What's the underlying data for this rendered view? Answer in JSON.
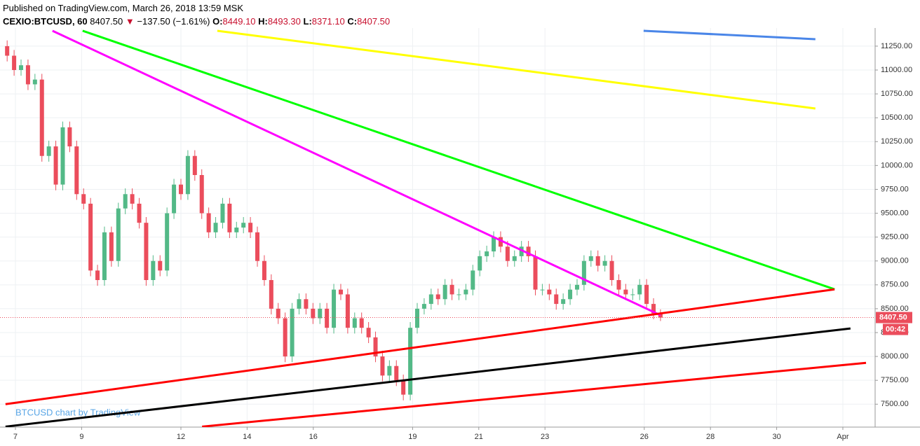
{
  "header": {
    "published": "Published on TradingView.com, March 26, 2018 13:59 MSK",
    "symbol": "CEXIO:BTCUSD, 60",
    "last": "8407.50",
    "arrow": "▼",
    "change": "−137.50 (−1.61%)",
    "ohlc": [
      {
        "label": "O:",
        "value": "8449.10"
      },
      {
        "label": "H:",
        "value": "8493.30"
      },
      {
        "label": "L:",
        "value": "8371.10"
      },
      {
        "label": "C:",
        "value": "8407.50"
      }
    ]
  },
  "chart_data": {
    "type": "candlestick",
    "watermark": "BTCUSD chart by TradingView",
    "up_color": "#53b987",
    "down_color": "#eb4d5c",
    "grid": true,
    "last_price_label": "8407.50",
    "countdown": "00:42",
    "xlim": [
      6.534,
      32.975
    ],
    "ylim": [
      7260,
      11440
    ],
    "xticks": [
      7,
      9,
      12,
      14,
      16,
      19,
      21,
      23,
      26,
      28,
      30,
      {
        "value": 32,
        "label": "Apr"
      }
    ],
    "yticks": [
      {
        "value": 7500,
        "label": "7500.00"
      },
      {
        "value": 7750,
        "label": "7750.00"
      },
      {
        "value": 8000,
        "label": "8000.00"
      },
      {
        "value": 8250,
        "label": "8250.00"
      },
      {
        "value": 8500,
        "label": "8500.00"
      },
      {
        "value": 8750,
        "label": "8750.00"
      },
      {
        "value": 9000,
        "label": "9000.00"
      },
      {
        "value": 9250,
        "label": "9250.00"
      },
      {
        "value": 9500,
        "label": "9500.00"
      },
      {
        "value": 9750,
        "label": "9750.00"
      },
      {
        "value": 10000,
        "label": "10000.00"
      },
      {
        "value": 10250,
        "label": "10250.00"
      },
      {
        "value": 10500,
        "label": "10500.00"
      },
      {
        "value": 10750,
        "label": "10750.00"
      },
      {
        "value": 11000,
        "label": "11000.00"
      },
      {
        "value": 11250,
        "label": "11250.00"
      }
    ],
    "x": [
      6.75,
      6.96,
      7.17,
      7.38,
      7.59,
      7.8,
      8.01,
      8.22,
      8.43,
      8.64,
      8.85,
      9.06,
      9.27,
      9.48,
      9.69,
      9.9,
      10.11,
      10.32,
      10.53,
      10.74,
      10.95,
      11.16,
      11.37,
      11.58,
      11.79,
      12,
      12.21,
      12.42,
      12.63,
      12.84,
      13.05,
      13.26,
      13.47,
      13.68,
      13.89,
      14.1,
      14.31,
      14.52,
      14.73,
      14.94,
      15.15,
      15.36,
      15.57,
      15.78,
      15.99,
      16.2,
      16.41,
      16.62,
      16.83,
      17.04,
      17.25,
      17.46,
      17.67,
      17.88,
      18.09,
      18.3,
      18.51,
      18.72,
      18.93,
      19.14,
      19.35,
      19.56,
      19.77,
      19.98,
      20.19,
      20.4,
      20.61,
      20.82,
      21.03,
      21.24,
      21.45,
      21.66,
      21.87,
      22.08,
      22.29,
      22.5,
      22.71,
      22.92,
      23.13,
      23.34,
      23.55,
      23.76,
      23.97,
      24.18,
      24.39,
      24.6,
      24.81,
      25.02,
      25.23,
      25.44,
      25.65,
      25.86,
      26.07,
      26.28,
      26.49
    ],
    "open": [
      11250,
      11150,
      11000,
      11050,
      10850,
      10900,
      10100,
      10200,
      9800,
      10400,
      10200,
      9700,
      9600,
      8900,
      8800,
      9300,
      9000,
      9550,
      9700,
      9600,
      9400,
      8800,
      9000,
      8900,
      9500,
      9800,
      9700,
      10100,
      9900,
      9500,
      9300,
      9400,
      9600,
      9300,
      9350,
      9400,
      9300,
      9000,
      8800,
      8500,
      8400,
      8000,
      8500,
      8600,
      8500,
      8400,
      8500,
      8300,
      8700,
      8650,
      8300,
      8400,
      8300,
      8200,
      8000,
      7800,
      7900,
      7750,
      7600,
      8300,
      8500,
      8550,
      8650,
      8600,
      8750,
      8650,
      8650,
      8700,
      8900,
      9050,
      9100,
      9250,
      9150,
      9000,
      9050,
      9150,
      9050,
      8700,
      8700,
      8650,
      8550,
      8600,
      8700,
      8750,
      9000,
      9050,
      8950,
      9000,
      8800,
      8700,
      8650,
      8650,
      8750,
      8550,
      8449.1
    ],
    "high": [
      11310,
      11210,
      11110,
      11110,
      10960,
      10960,
      10260,
      10260,
      10460,
      10460,
      10260,
      9760,
      9660,
      8960,
      9360,
      9360,
      9610,
      9760,
      9760,
      9660,
      9460,
      9060,
      9060,
      9560,
      9860,
      9860,
      10160,
      10160,
      9960,
      9560,
      9460,
      9660,
      9660,
      9410,
      9460,
      9460,
      9360,
      9060,
      8860,
      8560,
      8460,
      8560,
      8660,
      8660,
      8560,
      8560,
      8560,
      8760,
      8760,
      8710,
      8460,
      8460,
      8360,
      8260,
      8060,
      7960,
      7960,
      7810,
      8360,
      8560,
      8610,
      8710,
      8710,
      8810,
      8810,
      8710,
      8760,
      8960,
      9110,
      9160,
      9310,
      9310,
      9210,
      9110,
      9210,
      9210,
      9110,
      8760,
      8760,
      8710,
      8660,
      8760,
      8810,
      9060,
      9110,
      9110,
      9060,
      9060,
      8860,
      8760,
      8710,
      8810,
      8810,
      8610,
      8493.3
    ],
    "low": [
      11090,
      10940,
      10940,
      10790,
      10790,
      10040,
      10040,
      9740,
      9740,
      10140,
      9640,
      9540,
      8840,
      8740,
      8740,
      8940,
      8940,
      9490,
      9540,
      9340,
      8740,
      8740,
      8840,
      8840,
      9440,
      9640,
      9640,
      9840,
      9440,
      9240,
      9240,
      9340,
      9240,
      9240,
      9290,
      9240,
      8940,
      8740,
      8440,
      8340,
      7940,
      7940,
      8440,
      8440,
      8340,
      8340,
      8240,
      8240,
      8590,
      8240,
      8240,
      8240,
      8140,
      7940,
      7740,
      7740,
      7690,
      7540,
      7540,
      8240,
      8440,
      8490,
      8540,
      8540,
      8590,
      8590,
      8590,
      8640,
      8840,
      8990,
      9040,
      9090,
      8940,
      8940,
      8990,
      8990,
      8640,
      8640,
      8590,
      8490,
      8490,
      8540,
      8640,
      8690,
      8940,
      8890,
      8890,
      8740,
      8640,
      8590,
      8590,
      8590,
      8490,
      8390,
      8371.1
    ],
    "close": [
      11150,
      11000,
      11050,
      10850,
      10900,
      10100,
      10200,
      9800,
      10400,
      10200,
      9700,
      9600,
      8900,
      8800,
      9300,
      9000,
      9550,
      9700,
      9600,
      9400,
      8800,
      9000,
      8900,
      9500,
      9800,
      9700,
      10100,
      9900,
      9500,
      9300,
      9400,
      9600,
      9300,
      9350,
      9400,
      9300,
      9000,
      8800,
      8500,
      8400,
      8000,
      8500,
      8600,
      8500,
      8400,
      8500,
      8300,
      8700,
      8650,
      8300,
      8400,
      8300,
      8200,
      8000,
      7800,
      7900,
      7750,
      7600,
      8300,
      8500,
      8550,
      8650,
      8600,
      8750,
      8650,
      8650,
      8700,
      8900,
      9050,
      9100,
      9250,
      9150,
      9000,
      9050,
      9150,
      9050,
      8700,
      8700,
      8650,
      8550,
      8600,
      8700,
      8750,
      9000,
      9050,
      8950,
      9000,
      8800,
      8700,
      8650,
      8650,
      8750,
      8550,
      8450,
      8407.5
    ],
    "drawings": [
      {
        "color": "#ff00ff",
        "x": [
          8.12,
          26.49
        ],
        "y": [
          11411,
          8432
        ]
      },
      {
        "color": "#00ff00",
        "x": [
          9.03,
          31.75
        ],
        "y": [
          11411,
          8703
        ]
      },
      {
        "color": "#ffff00",
        "x": [
          13.1,
          31.17
        ],
        "y": [
          11411,
          10597
        ]
      },
      {
        "color": "#4a86e8",
        "x": [
          25.98,
          31.17
        ],
        "y": [
          11411,
          11323
        ]
      },
      {
        "color": "#ff0000",
        "x": [
          6.7,
          31.75
        ],
        "y": [
          7500,
          8703
        ]
      },
      {
        "color": "#000000",
        "x": [
          6.7,
          32.23
        ],
        "y": [
          7265,
          8293
        ]
      },
      {
        "color": "#ff0000",
        "x": [
          12.64,
          32.7
        ],
        "y": [
          7265,
          7933
        ]
      }
    ]
  }
}
